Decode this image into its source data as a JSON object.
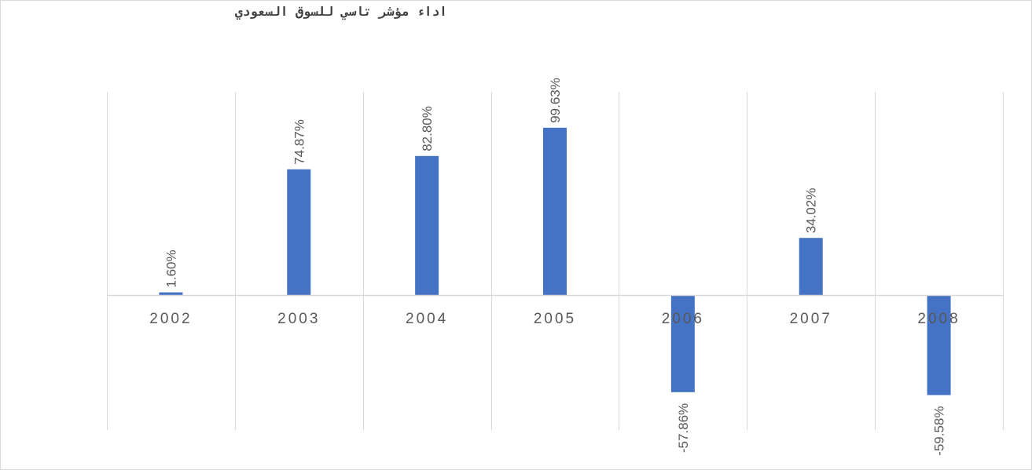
{
  "chart_data": {
    "type": "bar",
    "title": "اداء مؤشر تاسي للسوق السعودي",
    "categories": [
      "2002",
      "2003",
      "2004",
      "2005",
      "2006",
      "2007",
      "2008"
    ],
    "values": [
      1.6,
      74.87,
      82.8,
      99.63,
      -57.86,
      34.02,
      -59.58
    ],
    "data_labels": [
      "1.60%",
      "74.87%",
      "82.80%",
      "99.63%",
      "-57.86%",
      "34.02%",
      "-59.58%"
    ],
    "value_unit": "%",
    "grid": "vertical category separators",
    "legend": "none",
    "colors": {
      "bar": "#4472C4",
      "gridline": "#d9d9d9",
      "text": "#595959"
    }
  }
}
